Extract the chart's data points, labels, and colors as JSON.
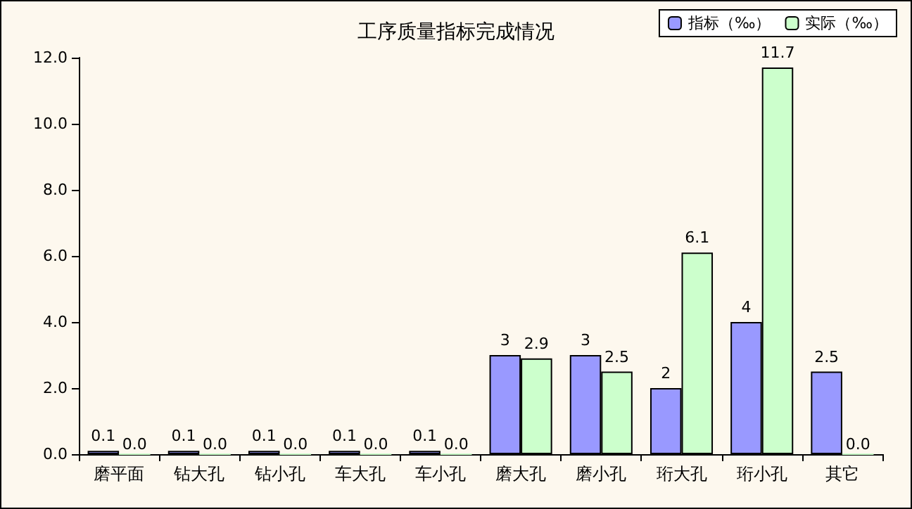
{
  "chart_data": {
    "type": "bar",
    "title": "工序质量指标完成情况",
    "categories": [
      "磨平面",
      "钻大孔",
      "钻小孔",
      "车大孔",
      "车小孔",
      "磨大孔",
      "磨小孔",
      "珩大孔",
      "珩小孔",
      "其它"
    ],
    "series": [
      {
        "name": "指标（‰）",
        "color": "#9999ff",
        "values": [
          0.1,
          0.1,
          0.1,
          0.1,
          0.1,
          3,
          3,
          2,
          4,
          2.5
        ],
        "value_labels": [
          "0.1",
          "0.1",
          "0.1",
          "0.1",
          "0.1",
          "3",
          "3",
          "2",
          "4",
          "2.5"
        ]
      },
      {
        "name": "实际（‰）",
        "color": "#ccffcc",
        "values": [
          0,
          0,
          0,
          0,
          0,
          2.9,
          2.5,
          6.1,
          11.7,
          0
        ],
        "value_labels": [
          "0.0",
          "0.0",
          "0.0",
          "0.0",
          "0.0",
          "2.9",
          "2.5",
          "6.1",
          "11.7",
          "0.0"
        ]
      }
    ],
    "ylim": [
      0,
      12
    ],
    "yticks": [
      {
        "value": 0,
        "label": "0.0"
      },
      {
        "value": 2,
        "label": "2.0"
      },
      {
        "value": 4,
        "label": "4.0"
      },
      {
        "value": 6,
        "label": "6.0"
      },
      {
        "value": 8,
        "label": "8.0"
      },
      {
        "value": 10,
        "label": "10.0"
      },
      {
        "value": 12,
        "label": "12.0"
      }
    ],
    "grid": false,
    "legend": "top right"
  }
}
